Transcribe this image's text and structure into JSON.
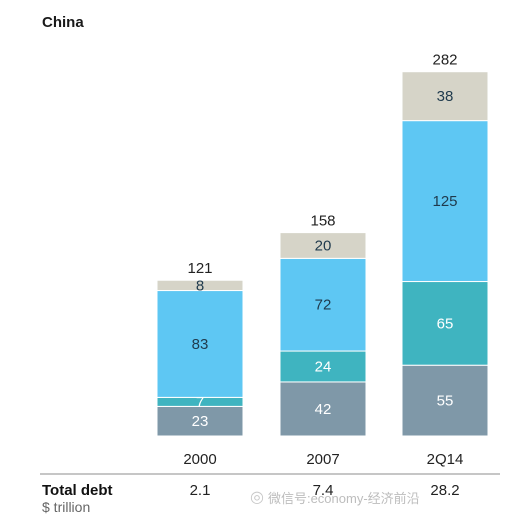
{
  "chart_data": {
    "type": "bar",
    "stacked": true,
    "title": "China",
    "categories": [
      "2000",
      "2007",
      "2Q14"
    ],
    "series": [
      {
        "values": [
          23,
          42,
          55
        ],
        "color": "#7f98a8"
      },
      {
        "values": [
          7,
          24,
          65
        ],
        "color": "#3fb4c0"
      },
      {
        "values": [
          83,
          72,
          125
        ],
        "color": "#5ec7f3"
      },
      {
        "values": [
          8,
          20,
          38
        ],
        "color": "#d6d4c8"
      }
    ],
    "totals": [
      "121",
      "158",
      "282"
    ],
    "total_debt": {
      "label": "Total debt",
      "unit": "$ trillion",
      "values": [
        "2.1",
        "7.4",
        "28.2"
      ]
    }
  },
  "watermark": {
    "icon": "wechat-icon",
    "text": "微信号:economy-经济前沿"
  }
}
